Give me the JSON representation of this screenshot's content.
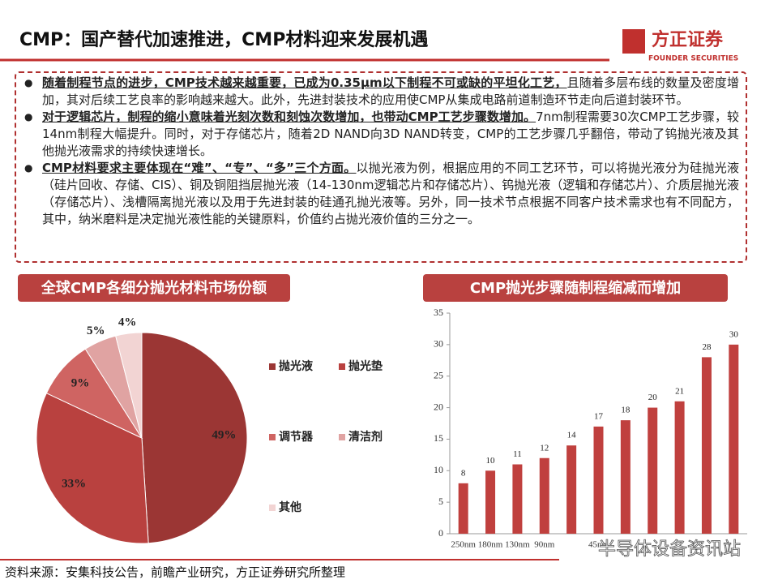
{
  "header": {
    "title": "CMP：国产替代加速推进，CMP材料迎来发展机遇",
    "logo": "方正证券",
    "logo_en": "FOUNDER SECURITIES"
  },
  "bullets": [
    {
      "bold": "随着制程节点的进步，CMP技术越来越重要，已成为0.35μm以下制程不可或缺的平坦化工艺，",
      "text": "且随着多层布线的数量及密度增加，其对后续工艺良率的影响越来越大。此外，先进封装技术的应用使CMP从集成电路前道制造环节走向后道封装环节。"
    },
    {
      "bold": "对于逻辑芯片，制程的缩小意味着光刻次数和刻蚀次数增加，也带动CMP工艺步骤数增加。",
      "text": "7nm制程需要30次CMP工艺步骤，较14nm制程大幅提升。同时，对于存储芯片，随着2D NAND向3D NAND转变，CMP的工艺步骤几乎翻倍，带动了钨抛光液及其他抛光液需求的持续快速增长。"
    },
    {
      "bold": "CMP材料要求主要体现在“难”、“专”、“多”三个方面。",
      "text": "以抛光液为例，根据应用的不同工艺环节，可以将抛光液分为硅抛光液（硅片回收、存储、CIS）、铜及铜阻挡层抛光液（14-130nm逻辑芯片和存储芯片）、钨抛光液（逻辑和存储芯片）、介质层抛光液（存储芯片）、浅槽隔离抛光液以及用于先进封装的硅通孔抛光液等。另外，同一技术节点根据不同客户技术需求也有不同配方，其中，纳米磨料是决定抛光液性能的关键原料，价值约占抛光液价值的三分之一。"
    }
  ],
  "chart_data": [
    {
      "type": "pie",
      "title": "全球CMP各细分抛光材料市场份额",
      "categories": [
        "抛光液",
        "抛光垫",
        "调节器",
        "清洁剂",
        "其他"
      ],
      "values": [
        49,
        33,
        9,
        5,
        4
      ],
      "value_labels": [
        "49%",
        "33%",
        "9%",
        "5%",
        "4%"
      ],
      "colors": [
        "#9b3634",
        "#b9413f",
        "#cf6462",
        "#e0a3a2",
        "#f2d4d3"
      ]
    },
    {
      "type": "bar",
      "title": "CMP抛光步骤随制程缩减而增加",
      "categories": [
        "250nm",
        "180nm",
        "130nm",
        "90nm",
        null,
        "45nm",
        null,
        null,
        null,
        null,
        null
      ],
      "values": [
        8,
        10,
        11,
        12,
        14,
        17,
        18,
        20,
        21,
        28,
        30
      ],
      "color": "#c0403e",
      "ylim": [
        0,
        35
      ],
      "yticks": [
        0,
        5,
        10,
        15,
        20,
        25,
        30,
        35
      ]
    }
  ],
  "footer": {
    "source": "资料来源：安集科技公告，前瞻产业研究，方正证券研究所整理",
    "watermark": "半导体设备资讯站"
  }
}
